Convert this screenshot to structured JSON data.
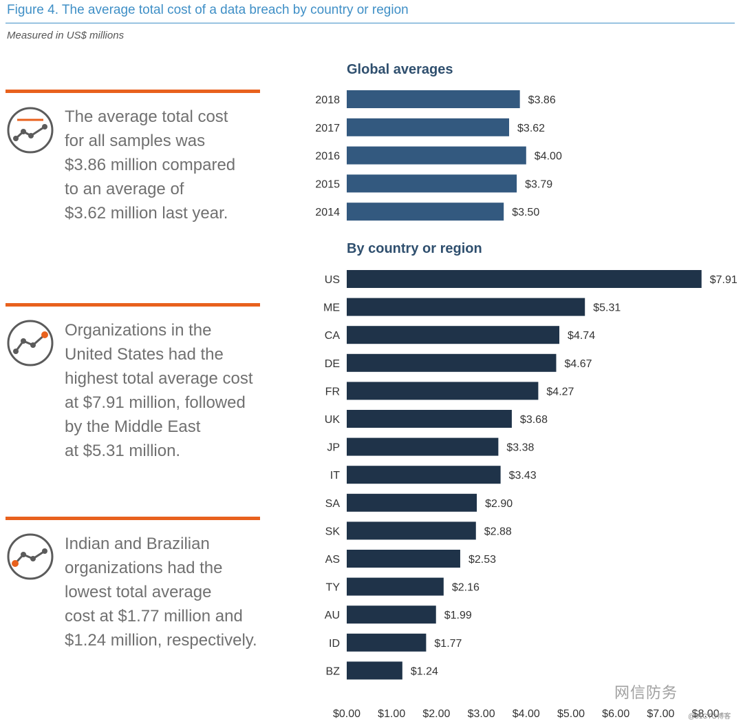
{
  "figure": {
    "title": "Figure 4. The average total cost of a data breach by country or region",
    "subtitle": "Measured in US$ millions"
  },
  "callouts": [
    {
      "icon": "line-chart-flat-icon",
      "lines": [
        "The average total cost",
        "for all samples was",
        "$3.86 million compared",
        "to an average of",
        "$3.62 million last year."
      ]
    },
    {
      "icon": "line-chart-high-icon",
      "lines": [
        "Organizations in the",
        "United States had the",
        "highest total average cost",
        "at $7.91 million, followed",
        "by the Middle East",
        "at $5.31 million."
      ]
    },
    {
      "icon": "line-chart-low-icon",
      "lines": [
        "Indian and Brazilian",
        "organizations had the",
        "lowest total average",
        "cost at $1.77 million and",
        "$1.24 million, respectively."
      ]
    }
  ],
  "colors": {
    "accent": "#e8611d",
    "title_blue": "#3f8fc6",
    "global_bar": "#33597f",
    "country_bar": "#1f3349",
    "icon_gray": "#5b5b5b"
  },
  "chart_data": [
    {
      "type": "bar",
      "orientation": "horizontal",
      "title": "Global averages",
      "categories": [
        "2018",
        "2017",
        "2016",
        "2015",
        "2014"
      ],
      "values": [
        3.86,
        3.62,
        4.0,
        3.79,
        3.5
      ],
      "value_labels": [
        "$3.86",
        "$3.62",
        "$4.00",
        "$3.79",
        "$3.50"
      ],
      "xlim": [
        0,
        8
      ]
    },
    {
      "type": "bar",
      "orientation": "horizontal",
      "title": "By country or region",
      "categories": [
        "US",
        "ME",
        "CA",
        "DE",
        "FR",
        "UK",
        "JP",
        "IT",
        "SA",
        "SK",
        "AS",
        "TY",
        "AU",
        "ID",
        "BZ"
      ],
      "values": [
        7.91,
        5.31,
        4.74,
        4.67,
        4.27,
        3.68,
        3.38,
        3.43,
        2.9,
        2.88,
        2.53,
        2.16,
        1.99,
        1.77,
        1.24
      ],
      "value_labels": [
        "$7.91",
        "$5.31",
        "$4.74",
        "$4.67",
        "$4.27",
        "$3.68",
        "$3.38",
        "$3.43",
        "$2.90",
        "$2.88",
        "$2.53",
        "$2.16",
        "$1.99",
        "$1.77",
        "$1.24"
      ],
      "xlim": [
        0,
        8
      ],
      "xticks": [
        "$0.00",
        "$1.00",
        "$2.00",
        "$3.00",
        "$4.00",
        "$5.00",
        "$6.00",
        "$7.00",
        "$8.00"
      ]
    }
  ],
  "watermark": {
    "text": "网信防务",
    "small": "@51CTO博客"
  }
}
